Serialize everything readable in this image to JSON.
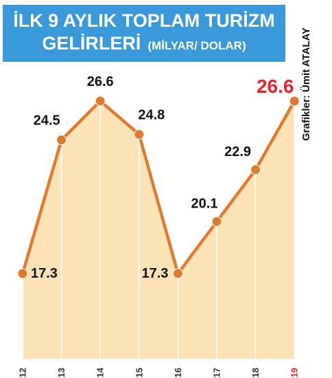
{
  "header": {
    "title_line1": "İLK 9 AYLIK TOPLAM TURİZM",
    "title_line2": "GELİRLERİ",
    "unit": "(MİLYAR/ DOLAR)"
  },
  "credit": "Grafikler: Ümit ATALAY",
  "colors": {
    "header_bg": "#3a9ad9",
    "line": "#e07a2e",
    "area": "#fde3b5",
    "highlight": "#e8232a"
  },
  "chart_data": {
    "type": "area",
    "title": "İLK 9 AYLIK TOPLAM TURİZM GELİRLERİ (MİLYAR/ DOLAR)",
    "categories": [
      "2012",
      "2013",
      "2014",
      "2015",
      "2016",
      "2017",
      "2018",
      "2019"
    ],
    "values": [
      17.3,
      24.5,
      26.6,
      24.8,
      17.3,
      20.1,
      22.9,
      26.6
    ],
    "value_labels": [
      "17.3",
      "24.5",
      "26.6",
      "24.8",
      "17.3",
      "20.1",
      "22.9",
      "26.6"
    ],
    "highlight_index": 7,
    "ylim": [
      10,
      27.5
    ],
    "grid": false,
    "xlabel": "",
    "ylabel": ""
  }
}
